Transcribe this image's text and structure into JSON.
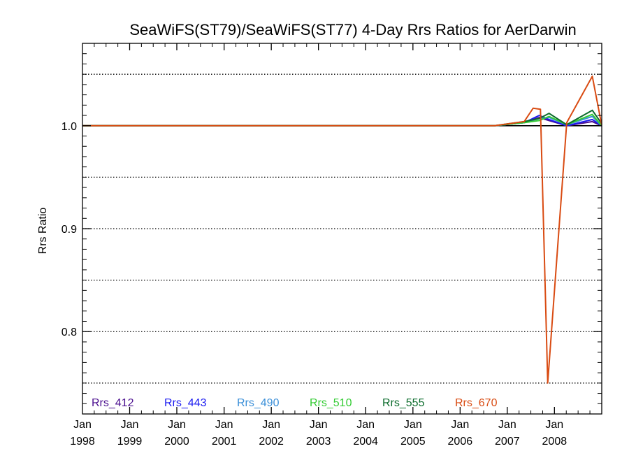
{
  "chart_data": {
    "type": "line",
    "title": "SeaWiFS(ST79)/SeaWiFS(ST77) 4-Day Rrs Ratios for AerDarwin",
    "xlabel": "",
    "ylabel": "Rrs Ratio",
    "xlim": [
      "1998-01-01",
      "2008-12-31"
    ],
    "ylim": [
      0.72,
      1.08
    ],
    "x_ticks": [
      {
        "date": "1998-01-01",
        "label": [
          "Jan",
          "1998"
        ]
      },
      {
        "date": "1999-01-01",
        "label": [
          "Jan",
          "1999"
        ]
      },
      {
        "date": "2000-01-01",
        "label": [
          "Jan",
          "2000"
        ]
      },
      {
        "date": "2001-01-01",
        "label": [
          "Jan",
          "2001"
        ]
      },
      {
        "date": "2002-01-01",
        "label": [
          "Jan",
          "2002"
        ]
      },
      {
        "date": "2003-01-01",
        "label": [
          "Jan",
          "2003"
        ]
      },
      {
        "date": "2004-01-01",
        "label": [
          "Jan",
          "2004"
        ]
      },
      {
        "date": "2005-01-01",
        "label": [
          "Jan",
          "2005"
        ]
      },
      {
        "date": "2006-01-01",
        "label": [
          "Jan",
          "2006"
        ]
      },
      {
        "date": "2007-01-01",
        "label": [
          "Jan",
          "2007"
        ]
      },
      {
        "date": "2008-01-01",
        "label": [
          "Jan",
          "2008"
        ]
      }
    ],
    "y_ticks": [
      {
        "value": 0.8,
        "label": "0.8"
      },
      {
        "value": 0.9,
        "label": "0.9"
      },
      {
        "value": 1.0,
        "label": "1.0"
      }
    ],
    "dotted_gridlines_y": [
      0.75,
      0.8,
      0.85,
      0.9,
      0.95,
      1.0,
      1.05
    ],
    "reference_line_y": 1.0,
    "legend_position": "bottom-left",
    "series": [
      {
        "name": "Rrs_412",
        "color": "#4b0f8f",
        "x": [
          "1998-01-01",
          "2006-09-25",
          "2007-05-12",
          "2007-09-05",
          "2007-11-20",
          "2008-04-05",
          "2008-10-20",
          "2008-12-31"
        ],
        "y": [
          1.0,
          1.0,
          1.003,
          1.008,
          1.005,
          1.0,
          1.004,
          1.0
        ]
      },
      {
        "name": "Rrs_443",
        "color": "#1a1af0",
        "x": [
          "1998-01-01",
          "2006-09-25",
          "2007-05-12",
          "2007-09-05",
          "2007-11-20",
          "2008-04-05",
          "2008-10-20",
          "2008-12-31"
        ],
        "y": [
          1.0,
          1.0,
          1.003,
          1.01,
          1.006,
          1.0,
          1.006,
          1.0
        ]
      },
      {
        "name": "Rrs_490",
        "color": "#3a8fd8",
        "x": [
          "1998-01-01",
          "2006-09-25",
          "2007-05-12",
          "2007-09-05",
          "2007-11-20",
          "2008-04-05",
          "2008-10-20",
          "2008-12-31"
        ],
        "y": [
          1.0,
          1.0,
          1.003,
          1.007,
          1.008,
          1.001,
          1.009,
          1.0
        ]
      },
      {
        "name": "Rrs_510",
        "color": "#33cc33",
        "x": [
          "1998-01-01",
          "2006-09-25",
          "2007-05-12",
          "2007-09-05",
          "2007-11-20",
          "2008-04-05",
          "2008-10-20",
          "2008-12-31"
        ],
        "y": [
          1.0,
          1.0,
          1.003,
          1.005,
          1.009,
          1.001,
          1.011,
          1.0
        ]
      },
      {
        "name": "Rrs_555",
        "color": "#0b6b2b",
        "x": [
          "1998-01-01",
          "2006-09-25",
          "2007-05-12",
          "2007-09-05",
          "2007-11-20",
          "2008-04-05",
          "2008-10-20",
          "2008-12-31"
        ],
        "y": [
          1.0,
          1.0,
          1.004,
          1.007,
          1.012,
          1.001,
          1.015,
          1.002
        ]
      },
      {
        "name": "Rrs_670",
        "color": "#d94b12",
        "x": [
          "1998-01-01",
          "2006-09-25",
          "2007-05-12",
          "2007-07-20",
          "2007-09-15",
          "2007-11-10",
          "2008-04-05",
          "2008-10-20",
          "2008-12-31"
        ],
        "y": [
          1.0,
          1.0,
          1.004,
          1.017,
          1.016,
          0.75,
          1.003,
          1.048,
          1.001
        ]
      }
    ]
  }
}
